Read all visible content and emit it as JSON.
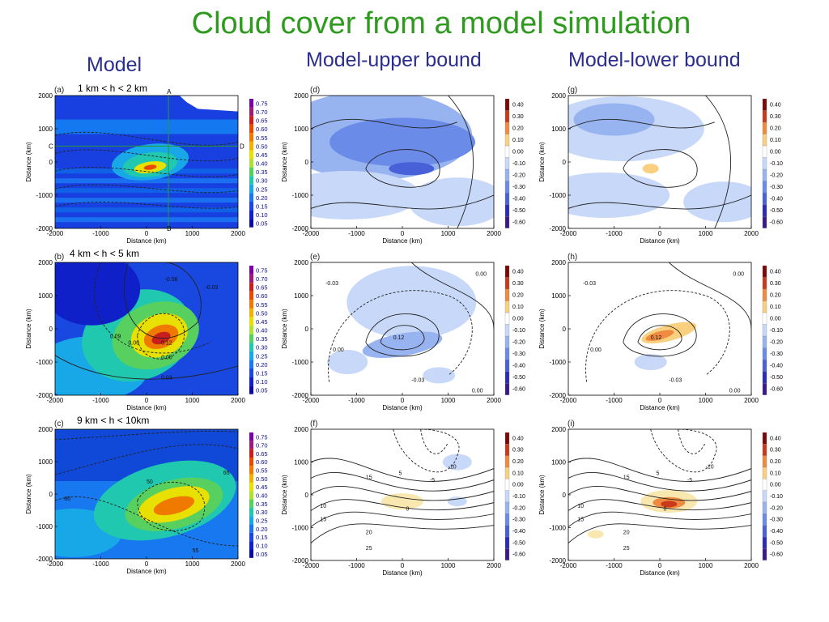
{
  "title": "Cloud cover from a model simulation",
  "columns": [
    "Model",
    "Model-upper bound",
    "Model-lower bound"
  ],
  "height_ranges": [
    "1 km < h < 2 km",
    "4 km < h < 5 km",
    "9 km < h < 10km"
  ],
  "panel_letters": [
    "(a)",
    "(b)",
    "(c)",
    "(d)",
    "(e)",
    "(f)",
    "(g)",
    "(h)",
    "(i)"
  ],
  "cross_section_labels": [
    "A",
    "B",
    "C",
    "D"
  ],
  "colors": {
    "title": "#2e9a1e",
    "column_heads": "#2b2d8f"
  },
  "chart_data": {
    "type": "heatmap",
    "xlabel": "Distance (km)",
    "ylabel": "Distance (km)",
    "xlim": [
      -2000,
      2000
    ],
    "ylim": [
      -2000,
      2000
    ],
    "xticks": [
      "-2000",
      "-1000",
      "0",
      "1000",
      "2000"
    ],
    "yticks": [
      "2000",
      "1000",
      "0",
      "-1000",
      "-2000"
    ],
    "model_colorbar": [
      "0.75",
      "0.70",
      "0.65",
      "0.60",
      "0.55",
      "0.50",
      "0.45",
      "0.40",
      "0.35",
      "0.30",
      "0.25",
      "0.20",
      "0.15",
      "0.10",
      "0.05"
    ],
    "bound_colorbar": [
      "0.40",
      "0.30",
      "0.20",
      "0.10",
      "0.00",
      "-0.10",
      "-0.20",
      "-0.30",
      "-0.40",
      "-0.50",
      "-0.60"
    ],
    "contour_labels": {
      "row2": [
        "-0.06",
        "-0.03",
        "0.00",
        "0.03",
        "0.06",
        "0.09",
        "0.12"
      ],
      "row3": [
        "5",
        "10",
        "15",
        "20",
        "25",
        "30",
        "-5",
        "-10",
        "0",
        "55",
        "60",
        "65",
        "50"
      ]
    }
  }
}
